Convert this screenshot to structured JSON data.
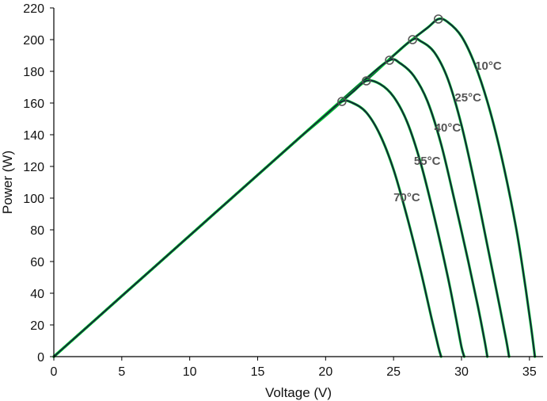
{
  "chart_data": {
    "type": "line",
    "title": "",
    "xlabel": "Voltage (V)",
    "ylabel": "Power (W)",
    "xlim": [
      0,
      36
    ],
    "ylim": [
      0,
      220
    ],
    "x_ticks": [
      0,
      5,
      10,
      15,
      20,
      25,
      30,
      35
    ],
    "y_ticks": [
      0,
      20,
      40,
      60,
      80,
      100,
      120,
      140,
      160,
      180,
      200,
      220
    ],
    "grid": false,
    "legend": "none",
    "colors": {
      "curve_dark": "#1a1a3a",
      "curve_green": "#00cc33",
      "marker": "#555555",
      "label": "#555555"
    },
    "series": [
      {
        "name": "10°C",
        "label_at": [
          31.0,
          181
        ],
        "mpp": [
          28.3,
          213
        ],
        "points": [
          [
            0,
            0
          ],
          [
            5,
            38.2
          ],
          [
            10,
            76.4
          ],
          [
            15,
            114.6
          ],
          [
            18,
            137.5
          ],
          [
            21,
            160.4
          ],
          [
            24,
            182.4
          ],
          [
            26,
            197.5
          ],
          [
            27.5,
            207.5
          ],
          [
            28.3,
            213
          ],
          [
            29,
            211
          ],
          [
            30,
            202
          ],
          [
            31,
            184
          ],
          [
            32,
            158
          ],
          [
            33,
            124
          ],
          [
            34,
            82
          ],
          [
            34.6,
            50
          ],
          [
            35.1,
            20
          ],
          [
            35.4,
            0
          ]
        ]
      },
      {
        "name": "25°C",
        "label_at": [
          29.5,
          161
        ],
        "mpp": [
          26.4,
          200
        ],
        "points": [
          [
            0,
            0
          ],
          [
            5,
            38.2
          ],
          [
            10,
            76.4
          ],
          [
            15,
            114.6
          ],
          [
            18,
            137.5
          ],
          [
            21,
            160.4
          ],
          [
            23,
            174.5
          ],
          [
            25,
            190
          ],
          [
            26.4,
            200
          ],
          [
            27,
            199
          ],
          [
            28,
            192
          ],
          [
            29,
            175
          ],
          [
            30,
            146
          ],
          [
            31,
            108
          ],
          [
            32,
            66
          ],
          [
            32.8,
            32
          ],
          [
            33.3,
            10
          ],
          [
            33.5,
            0
          ]
        ]
      },
      {
        "name": "40°C",
        "label_at": [
          28.0,
          142
        ],
        "mpp": [
          24.7,
          187
        ],
        "points": [
          [
            0,
            0
          ],
          [
            5,
            38.2
          ],
          [
            10,
            76.4
          ],
          [
            15,
            114.6
          ],
          [
            18,
            137.5
          ],
          [
            21,
            160.4
          ],
          [
            23,
            175.5
          ],
          [
            24.7,
            187
          ],
          [
            25.5,
            185
          ],
          [
            26.5,
            177
          ],
          [
            27.5,
            161
          ],
          [
            28.5,
            134
          ],
          [
            29.5,
            98
          ],
          [
            30.5,
            60
          ],
          [
            31.2,
            32
          ],
          [
            31.7,
            10
          ],
          [
            31.9,
            0
          ]
        ]
      },
      {
        "name": "55°C",
        "label_at": [
          26.5,
          121
        ],
        "mpp": [
          23.0,
          174
        ],
        "points": [
          [
            0,
            0
          ],
          [
            5,
            38.2
          ],
          [
            10,
            76.4
          ],
          [
            15,
            114.6
          ],
          [
            18,
            137.5
          ],
          [
            20,
            152
          ],
          [
            22,
            167
          ],
          [
            23,
            174
          ],
          [
            24,
            172
          ],
          [
            25,
            164
          ],
          [
            26,
            148
          ],
          [
            27,
            122
          ],
          [
            28,
            88
          ],
          [
            29,
            50
          ],
          [
            29.6,
            24
          ],
          [
            30.0,
            6
          ],
          [
            30.2,
            0
          ]
        ]
      },
      {
        "name": "70°C",
        "label_at": [
          25.0,
          98
        ],
        "mpp": [
          21.2,
          161
        ],
        "points": [
          [
            0,
            0
          ],
          [
            5,
            38.2
          ],
          [
            10,
            76.4
          ],
          [
            15,
            114.6
          ],
          [
            18,
            137.5
          ],
          [
            20,
            152.5
          ],
          [
            21.2,
            161
          ],
          [
            22,
            160
          ],
          [
            23,
            154
          ],
          [
            24,
            140
          ],
          [
            25,
            118
          ],
          [
            26,
            88
          ],
          [
            27,
            54
          ],
          [
            27.8,
            24
          ],
          [
            28.3,
            6
          ],
          [
            28.5,
            0
          ]
        ]
      }
    ]
  }
}
